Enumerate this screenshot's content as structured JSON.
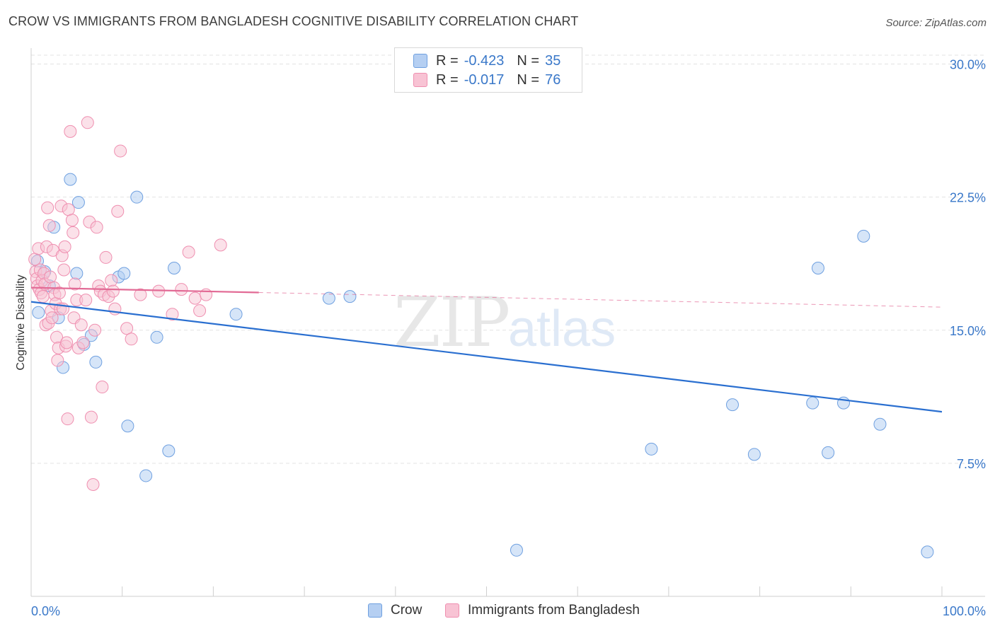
{
  "header": {
    "title": "CROW VS IMMIGRANTS FROM BANGLADESH COGNITIVE DISABILITY CORRELATION CHART",
    "source": "Source: ZipAtlas.com"
  },
  "colors": {
    "crow": "#6fa0e0",
    "crow_fill": "#b5cff2",
    "crow_line": "#2a6fd0",
    "bangladesh": "#ef8fb0",
    "bangladesh_fill": "#f8c3d4",
    "bangladesh_line": "#e26a95",
    "tick_text": "#3a78c9",
    "grid": "#e3e3e3"
  },
  "legend": {
    "rows": [
      {
        "r_label": "R =",
        "r_value": "-0.423",
        "n_label": "N =",
        "n_value": "35"
      },
      {
        "r_label": "R =",
        "r_value": "-0.017",
        "n_label": "N =",
        "n_value": "76"
      }
    ]
  },
  "bottom_legend": {
    "series1": "Crow",
    "series2": "Immigrants from Bangladesh"
  },
  "watermark": {
    "zip": "ZIP",
    "atlas": "atlas"
  },
  "chart_data": {
    "type": "scatter",
    "title": "CROW VS IMMIGRANTS FROM BANGLADESH COGNITIVE DISABILITY CORRELATION CHART",
    "xlabel": "",
    "ylabel": "Cognitive Disability",
    "xlim": [
      0,
      100
    ],
    "ylim": [
      0,
      30.5
    ],
    "x_tick_labels": [
      "0.0%",
      "100.0%"
    ],
    "y_ticks": [
      7.5,
      15.0,
      22.5,
      30.0
    ],
    "y_tick_labels": [
      "7.5%",
      "15.0%",
      "22.5%",
      "30.0%"
    ],
    "series": [
      {
        "name": "Crow",
        "r": -0.423,
        "n": 35,
        "trend": {
          "x": [
            0,
            100
          ],
          "y": [
            16.6,
            10.4
          ],
          "dashed_from": null
        },
        "points": [
          [
            0.7,
            18.9
          ],
          [
            0.8,
            16.0
          ],
          [
            1.5,
            18.3
          ],
          [
            2.0,
            17.5
          ],
          [
            2.5,
            20.8
          ],
          [
            3.0,
            15.7
          ],
          [
            3.5,
            12.9
          ],
          [
            4.3,
            23.5
          ],
          [
            5.0,
            18.2
          ],
          [
            5.2,
            22.2
          ],
          [
            5.8,
            14.2
          ],
          [
            6.6,
            14.7
          ],
          [
            7.1,
            13.2
          ],
          [
            9.6,
            18.0
          ],
          [
            10.2,
            18.2
          ],
          [
            10.6,
            9.6
          ],
          [
            11.6,
            22.5
          ],
          [
            12.6,
            6.8
          ],
          [
            13.8,
            14.6
          ],
          [
            15.1,
            8.2
          ],
          [
            15.7,
            18.5
          ],
          [
            22.5,
            15.9
          ],
          [
            32.7,
            16.8
          ],
          [
            35.0,
            16.9
          ],
          [
            53.3,
            2.6
          ],
          [
            68.1,
            8.3
          ],
          [
            77.0,
            10.8
          ],
          [
            79.4,
            8.0
          ],
          [
            85.8,
            10.9
          ],
          [
            86.4,
            18.5
          ],
          [
            87.5,
            8.1
          ],
          [
            89.2,
            10.9
          ],
          [
            91.4,
            20.3
          ],
          [
            93.2,
            9.7
          ],
          [
            98.4,
            2.5
          ]
        ]
      },
      {
        "name": "Immigrants from Bangladesh",
        "r": -0.017,
        "n": 76,
        "trend": {
          "x": [
            0,
            100
          ],
          "y": [
            17.4,
            16.3
          ],
          "dashed_from": 25
        },
        "points": [
          [
            0.4,
            19.0
          ],
          [
            0.5,
            18.3
          ],
          [
            0.6,
            17.9
          ],
          [
            0.7,
            17.5
          ],
          [
            0.8,
            19.6
          ],
          [
            0.9,
            17.3
          ],
          [
            1.0,
            18.4
          ],
          [
            1.1,
            17.1
          ],
          [
            1.2,
            17.8
          ],
          [
            1.3,
            16.9
          ],
          [
            1.4,
            18.2
          ],
          [
            1.5,
            17.6
          ],
          [
            1.6,
            15.3
          ],
          [
            1.7,
            19.7
          ],
          [
            1.8,
            21.9
          ],
          [
            1.9,
            15.4
          ],
          [
            2.0,
            20.9
          ],
          [
            2.1,
            18.0
          ],
          [
            2.2,
            16.1
          ],
          [
            2.3,
            15.7
          ],
          [
            2.4,
            19.5
          ],
          [
            2.5,
            17.4
          ],
          [
            2.6,
            17.0
          ],
          [
            2.7,
            16.5
          ],
          [
            2.8,
            14.6
          ],
          [
            2.9,
            13.3
          ],
          [
            3.0,
            14.0
          ],
          [
            3.1,
            17.1
          ],
          [
            3.2,
            16.2
          ],
          [
            3.3,
            22.0
          ],
          [
            3.4,
            19.2
          ],
          [
            3.5,
            16.2
          ],
          [
            3.6,
            18.4
          ],
          [
            3.7,
            19.7
          ],
          [
            3.8,
            14.1
          ],
          [
            3.9,
            14.3
          ],
          [
            4.0,
            10.0
          ],
          [
            4.1,
            21.8
          ],
          [
            4.3,
            26.2
          ],
          [
            4.5,
            21.2
          ],
          [
            4.6,
            20.5
          ],
          [
            4.7,
            15.7
          ],
          [
            4.8,
            17.6
          ],
          [
            5.0,
            16.7
          ],
          [
            5.2,
            14.0
          ],
          [
            5.5,
            15.3
          ],
          [
            5.7,
            14.3
          ],
          [
            6.0,
            16.7
          ],
          [
            6.2,
            26.7
          ],
          [
            6.4,
            21.1
          ],
          [
            6.6,
            10.1
          ],
          [
            6.8,
            6.3
          ],
          [
            7.0,
            15.0
          ],
          [
            7.2,
            20.8
          ],
          [
            7.4,
            17.5
          ],
          [
            7.6,
            17.2
          ],
          [
            7.8,
            11.8
          ],
          [
            8.0,
            17.0
          ],
          [
            8.2,
            19.1
          ],
          [
            8.5,
            16.9
          ],
          [
            8.8,
            17.8
          ],
          [
            9.0,
            17.2
          ],
          [
            9.2,
            16.2
          ],
          [
            9.5,
            21.7
          ],
          [
            9.8,
            25.1
          ],
          [
            10.5,
            15.1
          ],
          [
            11.0,
            14.5
          ],
          [
            12.0,
            17.0
          ],
          [
            14.0,
            17.2
          ],
          [
            15.5,
            15.9
          ],
          [
            16.5,
            17.3
          ],
          [
            17.3,
            19.4
          ],
          [
            18.0,
            16.8
          ],
          [
            18.5,
            16.1
          ],
          [
            19.2,
            17.0
          ],
          [
            20.8,
            19.8
          ]
        ]
      }
    ]
  }
}
